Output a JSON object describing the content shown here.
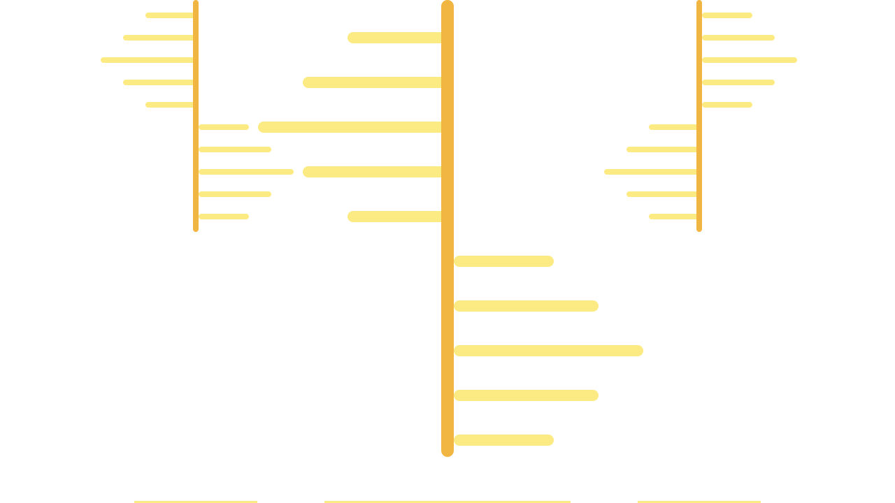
{
  "colors": {
    "background": "#ffffff",
    "spine": "#f0b641",
    "branch": "#fcea82",
    "baseline": "#fcea82"
  },
  "figures": [
    {
      "name": "left-figure",
      "left_branch_levels": [
        1,
        2,
        3,
        2,
        1
      ],
      "right_branch_levels": [
        1,
        2,
        3,
        2,
        1
      ]
    },
    {
      "name": "center-figure",
      "left_branch_levels": [
        1,
        2,
        3,
        2,
        1
      ],
      "right_branch_levels": [
        1,
        2,
        3,
        2,
        1
      ]
    },
    {
      "name": "right-figure",
      "left_branch_levels": [
        1,
        2,
        3,
        2,
        1
      ],
      "right_branch_levels": [
        1,
        2,
        3,
        2,
        1
      ],
      "mirrored": true
    }
  ]
}
